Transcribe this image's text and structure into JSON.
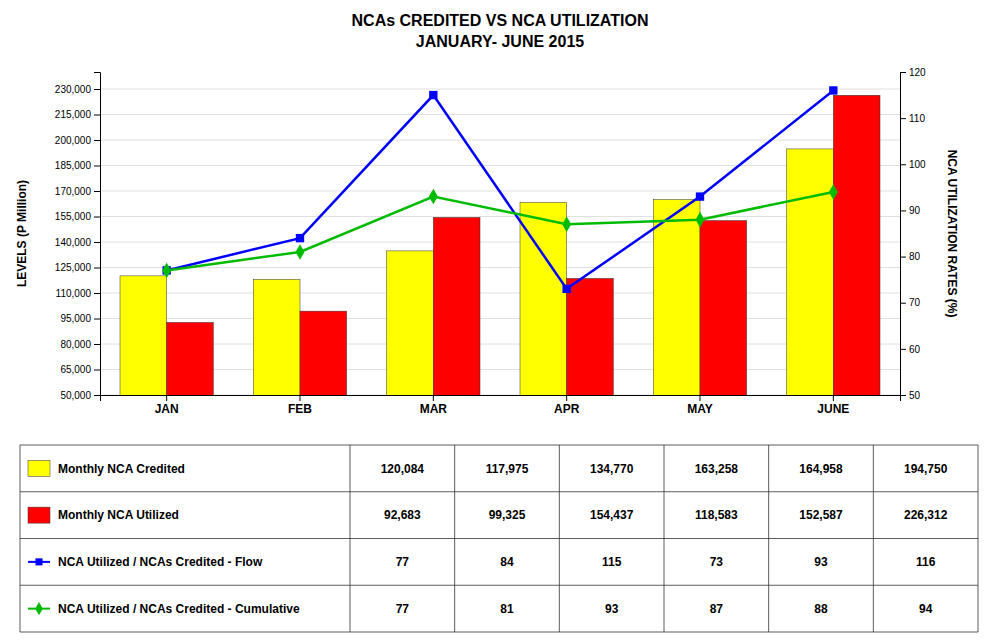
{
  "chart_data": {
    "type": "bar",
    "title": "NCAs CREDITED VS NCA UTILIZATION",
    "subtitle": "JANUARY-  JUNE 2015",
    "categories": [
      "JAN",
      "FEB",
      "MAR",
      "APR",
      "MAY",
      "JUNE"
    ],
    "series": [
      {
        "name": "Monthly NCA Credited",
        "type": "bar",
        "color": "#FFFF00",
        "values": [
          120084,
          117975,
          134770,
          163258,
          164958,
          194750
        ],
        "value_labels": [
          "120,084",
          "117,975",
          "134,770",
          "163,258",
          "164,958",
          "194,750"
        ]
      },
      {
        "name": "Monthly NCA Utilized",
        "type": "bar",
        "color": "#FF0000",
        "values": [
          92683,
          99325,
          154437,
          118583,
          152587,
          226312
        ],
        "value_labels": [
          "92,683",
          "99,325",
          "154,437",
          "118,583",
          "152,587",
          "226,312"
        ]
      },
      {
        "name": "NCA Utilized / NCAs Credited - Flow",
        "type": "line",
        "axis": "y2",
        "color": "#0000FF",
        "marker": "square",
        "values": [
          77,
          84,
          115,
          73,
          93,
          116
        ]
      },
      {
        "name": "NCA Utilized / NCAs Credited - Cumulative",
        "type": "line",
        "axis": "y2",
        "color": "#00BB00",
        "marker": "diamond",
        "values": [
          77,
          81,
          93,
          87,
          88,
          94
        ]
      }
    ],
    "y_label": "LEVELS (P Million)",
    "y2_label": "NCA UTILIZATION RATES (%)",
    "ylim": [
      50000,
      240000
    ],
    "yticks": [
      {
        "value": 50000,
        "label": "50,000"
      },
      {
        "value": 65000,
        "label": "65,000"
      },
      {
        "value": 80000,
        "label": "80,000"
      },
      {
        "value": 95000,
        "label": "95,000"
      },
      {
        "value": 110000,
        "label": "110,000"
      },
      {
        "value": 125000,
        "label": "125,000"
      },
      {
        "value": 140000,
        "label": "140,000"
      },
      {
        "value": 155000,
        "label": "155,000"
      },
      {
        "value": 170000,
        "label": "170,000"
      },
      {
        "value": 185000,
        "label": "185,000"
      },
      {
        "value": 200000,
        "label": "200,000"
      },
      {
        "value": 215000,
        "label": "215,000"
      },
      {
        "value": 230000,
        "label": "230,000"
      }
    ],
    "y2lim": [
      50,
      120
    ],
    "y2ticks": [
      50,
      60,
      70,
      80,
      90,
      100,
      110,
      120
    ],
    "grid": true,
    "legend": "bottom"
  }
}
